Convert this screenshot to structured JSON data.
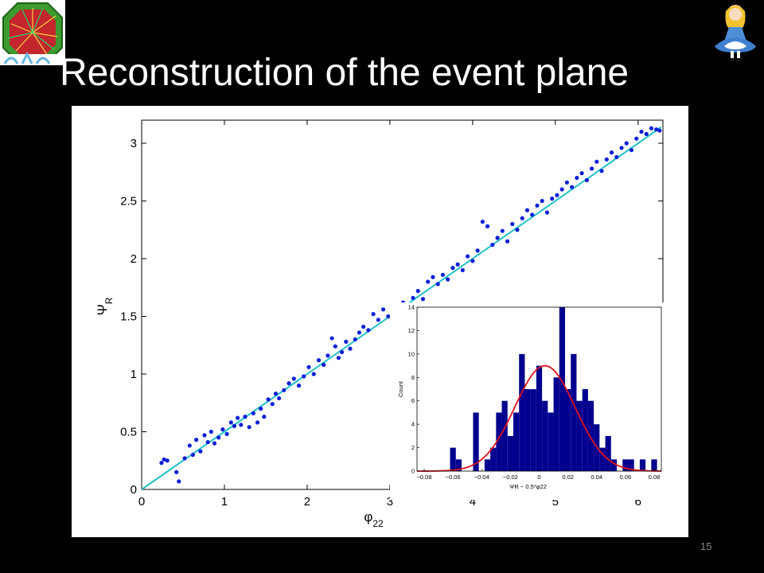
{
  "slide": {
    "title": "Reconstruction of the event plane",
    "page_number": "15"
  },
  "logos": {
    "left": "detector-logo-icon",
    "right": "cartoon-girl-icon"
  },
  "chart_data": [
    {
      "type": "scatter",
      "xlabel": "φ22",
      "ylabel": "ΨR",
      "xlim": [
        0,
        6.3
      ],
      "ylim": [
        0,
        3.2
      ],
      "xticks": [
        0,
        1,
        2,
        3,
        4,
        5,
        6
      ],
      "yticks": [
        0,
        0.5,
        1,
        1.5,
        2,
        2.5,
        3
      ],
      "ytick_labels": [
        "0",
        "0.5",
        "1",
        "1.5",
        "2",
        "2.5",
        "3"
      ],
      "grid": false,
      "colors": {
        "points": "#0a1fd8",
        "line": "#21c1c9"
      },
      "line": {
        "type": "y = 0.5x",
        "from": [
          0,
          0
        ],
        "to": [
          6.28,
          3.14
        ]
      },
      "points": [
        [
          0.24,
          0.23
        ],
        [
          0.27,
          0.26
        ],
        [
          0.31,
          0.25
        ],
        [
          0.42,
          0.15
        ],
        [
          0.45,
          0.07
        ],
        [
          0.52,
          0.27
        ],
        [
          0.58,
          0.38
        ],
        [
          0.62,
          0.3
        ],
        [
          0.66,
          0.43
        ],
        [
          0.71,
          0.33
        ],
        [
          0.76,
          0.47
        ],
        [
          0.8,
          0.41
        ],
        [
          0.84,
          0.5
        ],
        [
          0.88,
          0.4
        ],
        [
          0.93,
          0.45
        ],
        [
          0.98,
          0.52
        ],
        [
          1.03,
          0.48
        ],
        [
          1.08,
          0.58
        ],
        [
          1.12,
          0.55
        ],
        [
          1.16,
          0.62
        ],
        [
          1.2,
          0.56
        ],
        [
          1.25,
          0.63
        ],
        [
          1.3,
          0.54
        ],
        [
          1.35,
          0.66
        ],
        [
          1.4,
          0.58
        ],
        [
          1.44,
          0.7
        ],
        [
          1.48,
          0.63
        ],
        [
          1.53,
          0.78
        ],
        [
          1.58,
          0.74
        ],
        [
          1.62,
          0.83
        ],
        [
          1.66,
          0.79
        ],
        [
          1.72,
          0.86
        ],
        [
          1.78,
          0.92
        ],
        [
          1.84,
          0.96
        ],
        [
          1.9,
          0.9
        ],
        [
          1.96,
          0.98
        ],
        [
          2.02,
          1.06
        ],
        [
          2.08,
          1.0
        ],
        [
          2.14,
          1.12
        ],
        [
          2.2,
          1.08
        ],
        [
          2.25,
          1.16
        ],
        [
          2.3,
          1.31
        ],
        [
          2.34,
          1.24
        ],
        [
          2.38,
          1.14
        ],
        [
          2.42,
          1.19
        ],
        [
          2.47,
          1.28
        ],
        [
          2.52,
          1.22
        ],
        [
          2.58,
          1.3
        ],
        [
          2.63,
          1.36
        ],
        [
          2.68,
          1.41
        ],
        [
          2.74,
          1.38
        ],
        [
          2.8,
          1.52
        ],
        [
          2.86,
          1.47
        ],
        [
          2.92,
          1.56
        ],
        [
          2.98,
          1.5
        ],
        [
          3.03,
          1.59
        ],
        [
          3.1,
          1.54
        ],
        [
          3.16,
          1.62
        ],
        [
          3.22,
          1.58
        ],
        [
          3.28,
          1.66
        ],
        [
          3.34,
          1.72
        ],
        [
          3.4,
          1.65
        ],
        [
          3.46,
          1.8
        ],
        [
          3.52,
          1.84
        ],
        [
          3.58,
          1.78
        ],
        [
          3.64,
          1.86
        ],
        [
          3.7,
          1.82
        ],
        [
          3.76,
          1.92
        ],
        [
          3.82,
          1.95
        ],
        [
          3.88,
          1.9
        ],
        [
          3.94,
          2.02
        ],
        [
          4.0,
          1.98
        ],
        [
          4.06,
          2.07
        ],
        [
          4.12,
          2.32
        ],
        [
          4.18,
          2.28
        ],
        [
          4.24,
          2.12
        ],
        [
          4.3,
          2.18
        ],
        [
          4.36,
          2.24
        ],
        [
          4.42,
          2.15
        ],
        [
          4.48,
          2.3
        ],
        [
          4.54,
          2.25
        ],
        [
          4.6,
          2.35
        ],
        [
          4.66,
          2.42
        ],
        [
          4.72,
          2.38
        ],
        [
          4.78,
          2.46
        ],
        [
          4.84,
          2.5
        ],
        [
          4.9,
          2.4
        ],
        [
          4.96,
          2.52
        ],
        [
          5.02,
          2.55
        ],
        [
          5.08,
          2.6
        ],
        [
          5.14,
          2.66
        ],
        [
          5.2,
          2.62
        ],
        [
          5.26,
          2.7
        ],
        [
          5.32,
          2.74
        ],
        [
          5.38,
          2.68
        ],
        [
          5.44,
          2.78
        ],
        [
          5.5,
          2.84
        ],
        [
          5.56,
          2.76
        ],
        [
          5.62,
          2.86
        ],
        [
          5.68,
          2.92
        ],
        [
          5.74,
          2.88
        ],
        [
          5.8,
          2.96
        ],
        [
          5.86,
          3.0
        ],
        [
          5.92,
          2.94
        ],
        [
          5.98,
          3.04
        ],
        [
          6.04,
          3.1
        ],
        [
          6.1,
          3.08
        ],
        [
          6.16,
          3.13
        ],
        [
          6.22,
          3.12
        ],
        [
          6.26,
          3.11
        ]
      ]
    },
    {
      "type": "bar",
      "xlabel": "ΨR − 0.5*φ22",
      "ylabel": "Count",
      "xlim": [
        -0.085,
        0.085
      ],
      "ylim": [
        0,
        14
      ],
      "xticks": [
        -0.08,
        -0.06,
        -0.04,
        -0.02,
        0,
        0.02,
        0.04,
        0.06,
        0.08
      ],
      "xtick_labels": [
        "−0.08",
        "−0.06",
        "−0.04",
        "−0.02",
        "0",
        "0.02",
        "0.04",
        "0.06",
        "0.08"
      ],
      "yticks": [
        0,
        2,
        4,
        6,
        8,
        10,
        12,
        14
      ],
      "grid": false,
      "colors": {
        "bars": "#00008f",
        "fit": "#e0141e"
      },
      "bin_width": 0.004,
      "bin_starts": [
        -0.062,
        -0.058,
        -0.054,
        -0.05,
        -0.046,
        -0.042,
        -0.038,
        -0.034,
        -0.03,
        -0.026,
        -0.022,
        -0.018,
        -0.014,
        -0.01,
        -0.006,
        -0.002,
        0.002,
        0.006,
        0.01,
        0.014,
        0.018,
        0.022,
        0.026,
        0.03,
        0.034,
        0.038,
        0.042,
        0.046,
        0.05,
        0.054,
        0.058,
        0.062,
        0.066,
        0.07,
        0.074,
        0.078
      ],
      "counts": [
        2,
        1,
        0,
        0,
        5,
        0,
        1,
        2,
        5,
        6,
        3,
        5,
        10,
        7,
        7,
        9,
        6,
        5,
        8,
        14,
        7,
        10,
        6,
        7,
        6,
        4,
        2,
        3,
        1,
        0,
        1,
        1,
        0,
        1,
        0,
        1
      ],
      "fit": {
        "type": "gaussian",
        "mean": 0.004,
        "sigma": 0.021,
        "amplitude": 9.0
      }
    }
  ]
}
